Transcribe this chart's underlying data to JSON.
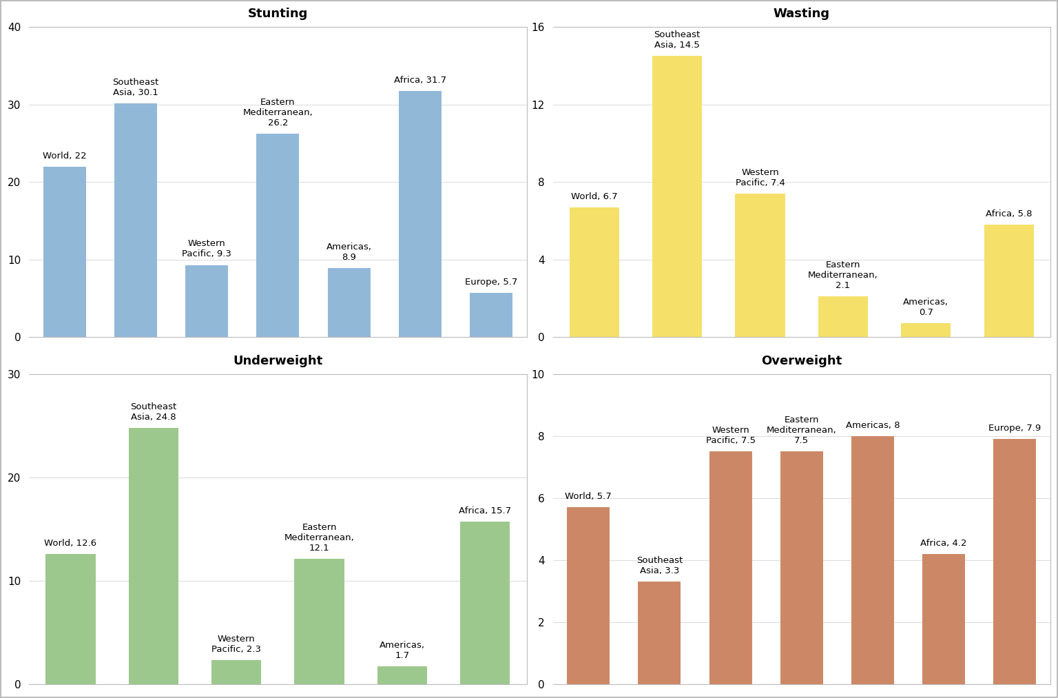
{
  "charts": [
    {
      "title": "Stunting",
      "values": [
        22,
        30.1,
        9.3,
        26.2,
        8.9,
        31.7,
        5.7
      ],
      "labels": [
        "World, 22",
        "Southeast\nAsia, 30.1",
        "Western\nPacific, 9.3",
        "Eastern\nMediterranean,\n26.2",
        "Americas,\n8.9",
        "Africa, 31.7",
        "Europe, 5.7"
      ],
      "color": "#92B8D8",
      "ylim": [
        0,
        40
      ],
      "yticks": [
        0,
        10,
        20,
        30,
        40
      ],
      "row": 0,
      "col": 0
    },
    {
      "title": "Wasting",
      "values": [
        6.7,
        14.5,
        7.4,
        2.1,
        0.7,
        5.8
      ],
      "labels": [
        "World, 6.7",
        "Southeast\nAsia, 14.5",
        "Western\nPacific, 7.4",
        "Eastern\nMediterranean,\n2.1",
        "Americas,\n0.7",
        "Africa, 5.8"
      ],
      "color": "#F5E06A",
      "ylim": [
        0,
        16
      ],
      "yticks": [
        0,
        4,
        8,
        12,
        16
      ],
      "row": 0,
      "col": 1
    },
    {
      "title": "Underweight",
      "values": [
        12.6,
        24.8,
        2.3,
        12.1,
        1.7,
        15.7
      ],
      "labels": [
        "World, 12.6",
        "Southeast\nAsia, 24.8",
        "Western\nPacific, 2.3",
        "Eastern\nMediterranean,\n12.1",
        "Americas,\n1.7",
        "Africa, 15.7"
      ],
      "color": "#9DC88D",
      "ylim": [
        0,
        30
      ],
      "yticks": [
        0,
        10,
        20,
        30
      ],
      "row": 1,
      "col": 0
    },
    {
      "title": "Overweight",
      "values": [
        5.7,
        3.3,
        7.5,
        7.5,
        8,
        4.2,
        7.9
      ],
      "labels": [
        "World, 5.7",
        "Southeast\nAsia, 3.3",
        "Western\nPacific, 7.5",
        "Eastern\nMediterranean,\n7.5",
        "Americas, 8",
        "Africa, 4.2",
        "Europe, 7.9"
      ],
      "color": "#CC8866",
      "ylim": [
        0,
        10
      ],
      "yticks": [
        0,
        2,
        4,
        6,
        8,
        10
      ],
      "row": 1,
      "col": 1
    }
  ],
  "background_color": "#FFFFFF",
  "title_fontsize": 13,
  "label_fontsize": 9.5,
  "tick_fontsize": 11,
  "border_color": "#BBBBBB"
}
